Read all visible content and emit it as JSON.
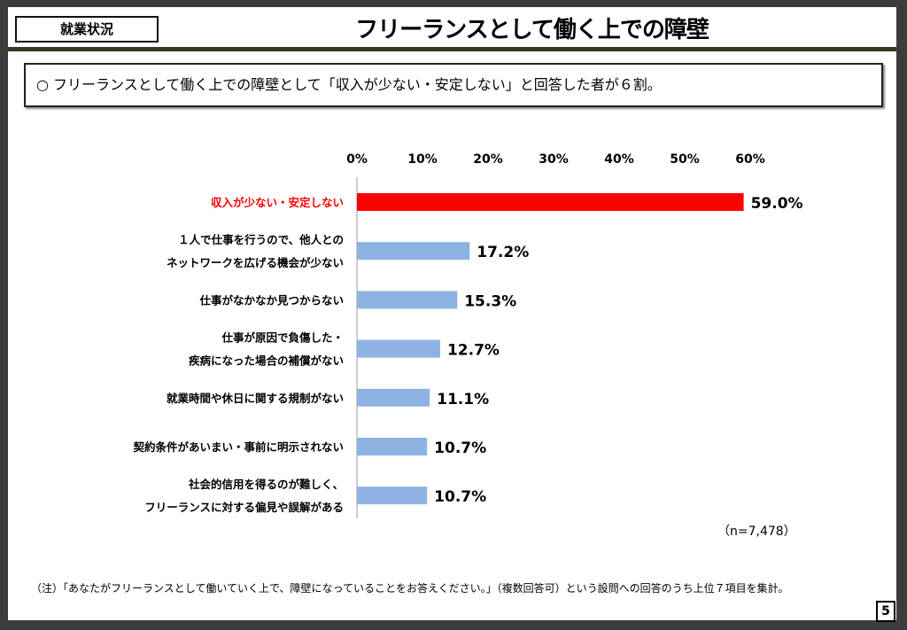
{
  "header": {
    "tag": "就業状況",
    "title": "フリーランスとして働く上での障壁"
  },
  "summary": "○ フリーランスとして働く上での障壁として「収入が少ない・安定しない」と回答した者が６割。",
  "chart_data": {
    "type": "bar",
    "orientation": "horizontal",
    "categories": [
      [
        "収入が少ない・安定しない"
      ],
      [
        "１人で仕事を行うので、他人との",
        "ネットワークを広げる機会が少ない"
      ],
      [
        "仕事がなかなか見つからない"
      ],
      [
        "仕事が原因で負傷した・",
        "疾病になった場合の補償がない"
      ],
      [
        "就業時間や休日に関する規制がない"
      ],
      [
        "契約条件があいまい・事前に明示されない"
      ],
      [
        "社会的信用を得るのが難しく、",
        "フリーランスに対する偏見や誤解がある"
      ]
    ],
    "values": [
      59.0,
      17.2,
      15.3,
      12.7,
      11.1,
      10.7,
      10.7
    ],
    "data_labels": [
      "59.0%",
      "17.2%",
      "15.3%",
      "12.7%",
      "11.1%",
      "10.7%",
      "10.7%"
    ],
    "xlim": [
      0,
      60
    ],
    "ticks": [
      "0%",
      "10%",
      "20%",
      "30%",
      "40%",
      "50%",
      "60%"
    ],
    "grid": false,
    "colors": {
      "highlight": "#ff0000",
      "default": "#8db3e2",
      "highlight_label": "#ff0000"
    }
  },
  "n_label": "（n=7,478）",
  "note": "（注）「あなたがフリーランスとして働いていく上で、障壁になっていることをお答えください。」（複数回答可）という設問への回答のうち上位７項目を集計。",
  "page_number": "5"
}
